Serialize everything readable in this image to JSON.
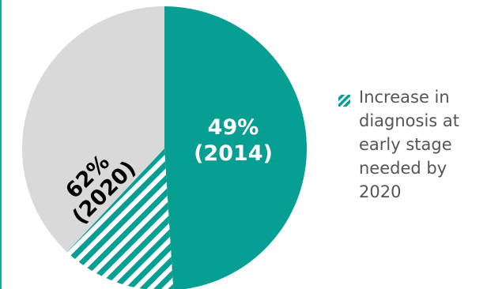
{
  "chart_data": {
    "type": "pie",
    "slices": [
      {
        "value": 49,
        "label": "49%",
        "sublabel": "(2014)",
        "style": "solid"
      },
      {
        "value": 13,
        "label": "",
        "sublabel": "",
        "style": "hatched"
      },
      {
        "value": 38,
        "label": "",
        "sublabel": "",
        "style": "solid-gray"
      }
    ],
    "annotation": {
      "label": "62%",
      "sublabel": "(2020)"
    },
    "legend": [
      {
        "label": "Increase in diagnosis at early stage needed by 2020",
        "style": "hatched"
      }
    ],
    "colors": {
      "teal": "#079f93",
      "gray": "#d9d9d9",
      "hatch_light": "#ffffff",
      "label_dark": "#000000",
      "label_light": "#ffffff"
    }
  }
}
